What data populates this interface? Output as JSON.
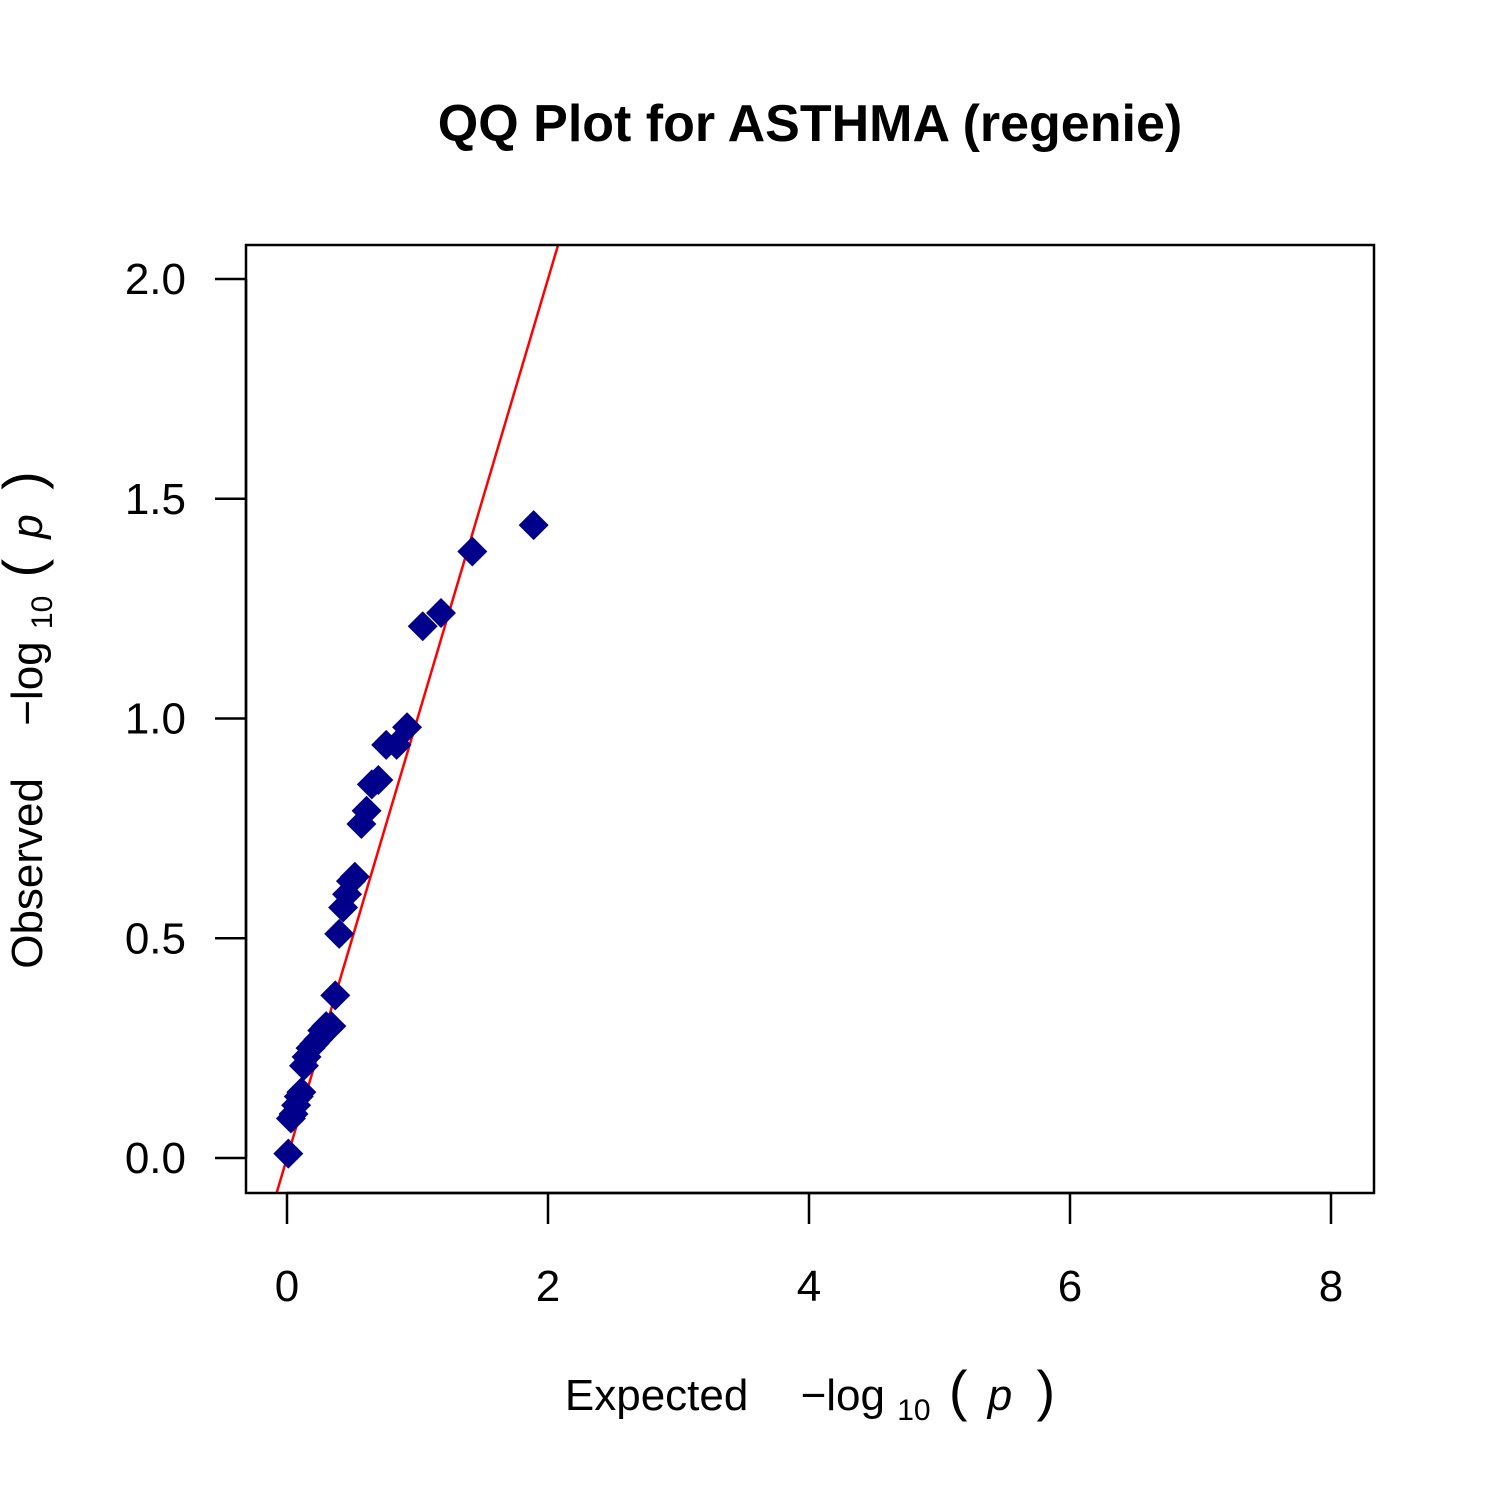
{
  "chart_data": {
    "type": "scatter",
    "title": "QQ Plot for ASTHMA (regenie)",
    "xlabel": {
      "prefix": "Expected",
      "func": "−log",
      "sub": "10",
      "var": "p"
    },
    "ylabel": {
      "prefix": "Observed",
      "func": "−log",
      "sub": "10",
      "var": "p"
    },
    "xlim": [
      0,
      8
    ],
    "ylim": [
      0,
      2.0
    ],
    "xticks": [
      0,
      2,
      4,
      6,
      8
    ],
    "yticks": [
      0.0,
      0.5,
      1.0,
      1.5,
      2.0
    ],
    "ytick_labels": [
      "0.0",
      "0.5",
      "1.0",
      "1.5",
      "2.0"
    ],
    "grid": false,
    "series": [
      {
        "marker": "diamond",
        "color": "#00008B",
        "points": [
          [
            0.01,
            0.01
          ],
          [
            0.03,
            0.09
          ],
          [
            0.05,
            0.1
          ],
          [
            0.07,
            0.12
          ],
          [
            0.09,
            0.14
          ],
          [
            0.11,
            0.15
          ],
          [
            0.13,
            0.21
          ],
          [
            0.15,
            0.23
          ],
          [
            0.18,
            0.25
          ],
          [
            0.21,
            0.26
          ],
          [
            0.24,
            0.27
          ],
          [
            0.27,
            0.29
          ],
          [
            0.3,
            0.3
          ],
          [
            0.34,
            0.3
          ],
          [
            0.37,
            0.37
          ],
          [
            0.4,
            0.51
          ],
          [
            0.43,
            0.57
          ],
          [
            0.46,
            0.6
          ],
          [
            0.49,
            0.63
          ],
          [
            0.52,
            0.64
          ],
          [
            0.57,
            0.76
          ],
          [
            0.61,
            0.79
          ],
          [
            0.65,
            0.85
          ],
          [
            0.7,
            0.86
          ],
          [
            0.76,
            0.94
          ],
          [
            0.84,
            0.94
          ],
          [
            0.92,
            0.98
          ],
          [
            1.04,
            1.21
          ],
          [
            1.18,
            1.24
          ],
          [
            1.42,
            1.38
          ],
          [
            1.89,
            1.44
          ]
        ]
      }
    ],
    "reference_line": {
      "slope": 1,
      "intercept": 0,
      "color": "#FF0000"
    }
  }
}
